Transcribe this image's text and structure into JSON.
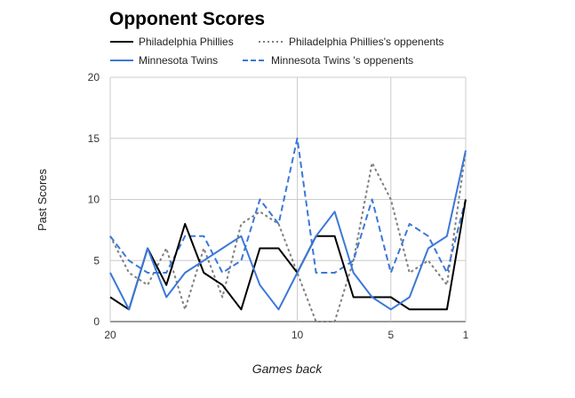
{
  "chart_data": {
    "type": "line",
    "title": "Opponent Scores",
    "xlabel": "Games back",
    "ylabel": "Past Scores",
    "x": [
      20,
      19,
      18,
      17,
      16,
      15,
      14,
      13,
      12,
      11,
      10,
      9,
      8,
      7,
      6,
      5,
      4,
      3,
      2,
      1
    ],
    "xlim": [
      20,
      1
    ],
    "ylim": [
      0,
      20
    ],
    "x_ticks": [
      20,
      10,
      5,
      1
    ],
    "y_ticks": [
      0,
      5,
      10,
      15,
      20
    ],
    "grid": true,
    "legend_position": "top",
    "series": [
      {
        "name": "Philadelphia Phillies",
        "color": "#000000",
        "dash": "solid",
        "values": [
          2,
          1,
          6,
          3,
          8,
          4,
          3,
          1,
          6,
          6,
          4,
          7,
          7,
          2,
          2,
          2,
          1,
          1,
          1,
          10
        ]
      },
      {
        "name": "Philadelphia Phillies's oppenents",
        "color": "#7f7f7f",
        "dash": "dotted",
        "values": [
          7,
          4,
          3,
          6,
          1,
          6,
          2,
          8,
          9,
          8,
          4,
          0,
          0,
          5,
          13,
          10,
          4,
          5,
          3,
          14
        ]
      },
      {
        "name": "Minnesota Twins",
        "color": "#3c78d8",
        "dash": "solid",
        "values": [
          4,
          1,
          6,
          2,
          4,
          5,
          6,
          7,
          3,
          1,
          4,
          7,
          9,
          4,
          2,
          1,
          2,
          6,
          7,
          14
        ]
      },
      {
        "name": "Minnesota Twins 's oppenents",
        "color": "#3c78d8",
        "dash": "dashed",
        "values": [
          7,
          5,
          4,
          4,
          7,
          7,
          4,
          5,
          10,
          8,
          15,
          4,
          4,
          5,
          10,
          4,
          8,
          7,
          4,
          10
        ]
      }
    ]
  }
}
